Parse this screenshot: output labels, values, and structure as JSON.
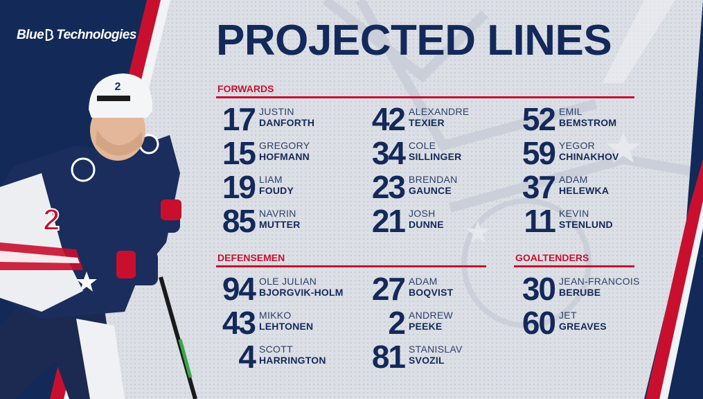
{
  "brand": {
    "text_left": "Blue",
    "text_right": "Technologies"
  },
  "title": "PROJECTED LINES",
  "colors": {
    "navy": "#13295a",
    "red": "#c8102e",
    "panel": "#dcdfe5",
    "dark": "#0f2347"
  },
  "player_photo": {
    "jersey_number": "2",
    "icon": "hockey-player-photo"
  },
  "forwards": {
    "heading": "FORWARDS",
    "columns": [
      [
        {
          "num": "17",
          "first": "JUSTIN",
          "last": "DANFORTH"
        },
        {
          "num": "15",
          "first": "GREGORY",
          "last": "HOFMANN"
        },
        {
          "num": "19",
          "first": "LIAM",
          "last": "FOUDY"
        },
        {
          "num": "85",
          "first": "NAVRIN",
          "last": "MUTTER"
        }
      ],
      [
        {
          "num": "42",
          "first": "ALEXANDRE",
          "last": "TEXIER"
        },
        {
          "num": "34",
          "first": "COLE",
          "last": "SILLINGER"
        },
        {
          "num": "23",
          "first": "BRENDAN",
          "last": "GAUNCE"
        },
        {
          "num": "21",
          "first": "JOSH",
          "last": "DUNNE"
        }
      ],
      [
        {
          "num": "52",
          "first": "EMIL",
          "last": "BEMSTROM"
        },
        {
          "num": "59",
          "first": "YEGOR",
          "last": "CHINAKHOV"
        },
        {
          "num": "37",
          "first": "ADAM",
          "last": "HELEWKA"
        },
        {
          "num": "11",
          "first": "KEVIN",
          "last": "STENLUND"
        }
      ]
    ]
  },
  "defensemen": {
    "heading": "DEFENSEMEN",
    "columns": [
      [
        {
          "num": "94",
          "first": "OLE JULIAN",
          "last": "BJORGVIK-HOLM"
        },
        {
          "num": "43",
          "first": "MIKKO",
          "last": "LEHTONEN"
        },
        {
          "num": "4",
          "first": "SCOTT",
          "last": "HARRINGTON"
        }
      ],
      [
        {
          "num": "27",
          "first": "ADAM",
          "last": "BOQVIST"
        },
        {
          "num": "2",
          "first": "ANDREW",
          "last": "PEEKE"
        },
        {
          "num": "81",
          "first": "STANISLAV",
          "last": "SVOZIL"
        }
      ]
    ]
  },
  "goaltenders": {
    "heading": "GOALTENDERS",
    "columns": [
      [
        {
          "num": "30",
          "first": "JEAN-FRANCOIS",
          "last": "BERUBE"
        },
        {
          "num": "60",
          "first": "JET",
          "last": "GREAVES"
        }
      ]
    ]
  }
}
